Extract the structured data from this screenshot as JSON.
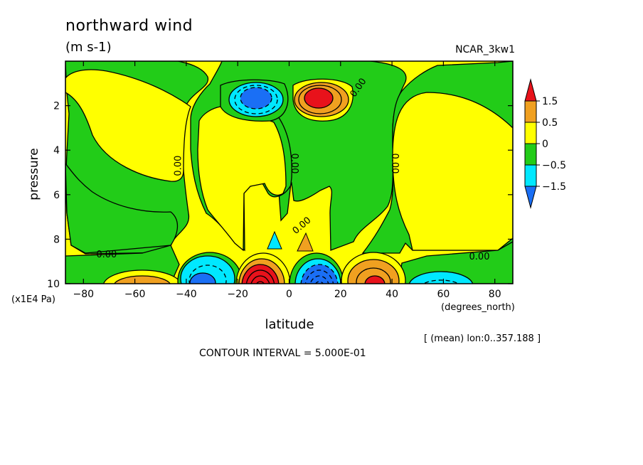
{
  "figure": {
    "title": "northward wind",
    "units": "(m s-1)",
    "source": "NCAR_3kw1",
    "y_axis_label": "pressure",
    "y_axis_unit": "(x1E4 Pa)",
    "x_axis_label": "latitude",
    "x_axis_unit": "(degrees_north)",
    "lon_note": "[ (mean) lon:0..357.188 ]",
    "contour_interval": "CONTOUR INTERVAL = 5.000E-01"
  },
  "colors": {
    "red": "#e8121b",
    "orange": "#f0a020",
    "yellow": "#ffff00",
    "green": "#22cc18",
    "cyan": "#00e8ff",
    "blue": "#1a6ff5"
  },
  "chart_data": {
    "type": "contour",
    "x": {
      "label": "latitude",
      "range": [
        -87,
        87
      ],
      "ticks": [
        -80,
        -60,
        -40,
        -20,
        0,
        20,
        40,
        60,
        80
      ]
    },
    "y": {
      "label": "pressure",
      "range": [
        0,
        10
      ],
      "reversed": true,
      "ticks": [
        2,
        4,
        6,
        8,
        10
      ]
    },
    "colorbar": {
      "labels": [
        "1.5",
        "0.5",
        "0",
        "-0.5",
        "-1.5"
      ],
      "levels": [
        1.5,
        0.5,
        0,
        -0.5,
        -1.5
      ],
      "colors": [
        "#e8121b",
        "#f0a020",
        "#ffff00",
        "#22cc18",
        "#00e8ff",
        "#1a6ff5"
      ]
    },
    "contour_labels": [
      {
        "text": "0.00",
        "x": -43,
        "y": 4.7,
        "angle": -90
      },
      {
        "text": "0.00",
        "x": 2,
        "y": 4.6,
        "angle": 90
      },
      {
        "text": "0.00",
        "x": 41,
        "y": 4.6,
        "angle": 90
      },
      {
        "text": "0.00",
        "x": 27,
        "y": 1.2,
        "angle": -55
      },
      {
        "text": "0.00",
        "x": 5,
        "y": 7.4,
        "angle": -40
      },
      {
        "text": "0.00",
        "x": -71,
        "y": 8.7,
        "angle": 0
      },
      {
        "text": "0.00",
        "x": 74,
        "y": 8.8,
        "angle": 0
      }
    ],
    "features": [
      {
        "kind": "min",
        "x": -15,
        "y": 1.9,
        "value": -1.5
      },
      {
        "kind": "max",
        "x": 12,
        "y": 1.9,
        "value": 1.5
      },
      {
        "kind": "max",
        "x": -10,
        "y": 9.8,
        "value": 2.5
      },
      {
        "kind": "min",
        "x": 10,
        "y": 9.8,
        "value": -2.5
      },
      {
        "kind": "min",
        "x": -33,
        "y": 9.8,
        "value": -1.5
      },
      {
        "kind": "max",
        "x": 32,
        "y": 9.8,
        "value": 1.5
      },
      {
        "kind": "max",
        "x": -55,
        "y": 9.9,
        "value": 0.8
      },
      {
        "kind": "min",
        "x": 60,
        "y": 9.9,
        "value": -0.7
      }
    ]
  }
}
